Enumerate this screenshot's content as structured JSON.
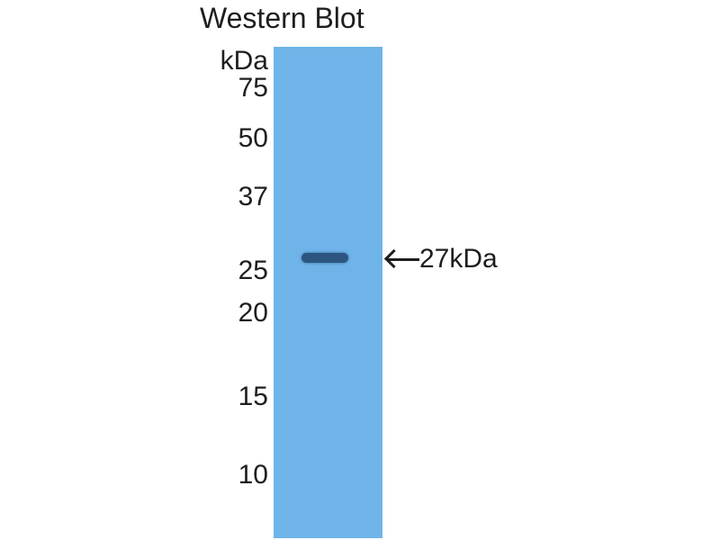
{
  "title": "Western Blot",
  "unit_label": "kDa",
  "markers": [
    "75",
    "50",
    "37",
    "25",
    "20",
    "15",
    "10"
  ],
  "band_annotation": "27kDa",
  "colors": {
    "lane": "#6fb4e8",
    "band": "#2c5580"
  }
}
